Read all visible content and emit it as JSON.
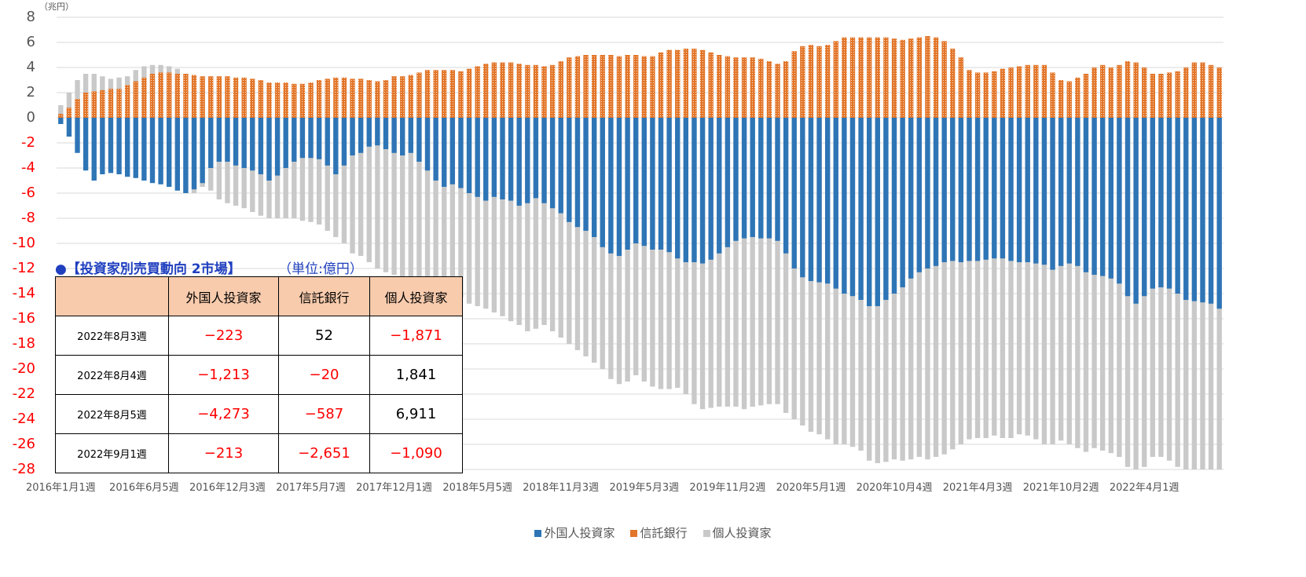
{
  "chart_data": {
    "type": "bar",
    "y_unit": "（兆円）",
    "categories": [
      "2016年1月1週",
      null,
      null,
      null,
      null,
      null,
      null,
      null,
      null,
      null,
      "2016年6月5週",
      null,
      null,
      null,
      null,
      null,
      null,
      null,
      null,
      null,
      "2016年12月3週",
      null,
      null,
      null,
      null,
      null,
      null,
      null,
      null,
      null,
      "2017年5月7週",
      null,
      null,
      null,
      null,
      null,
      null,
      null,
      null,
      null,
      "2017年12月1週",
      null,
      null,
      null,
      null,
      null,
      null,
      null,
      null,
      null,
      "2018年5月5週",
      null,
      null,
      null,
      null,
      null,
      null,
      null,
      null,
      null,
      "2018年11月3週",
      null,
      null,
      null,
      null,
      null,
      null,
      null,
      null,
      null,
      "2019年5月3週",
      null,
      null,
      null,
      null,
      null,
      null,
      null,
      null,
      null,
      "2019年11月2週",
      null,
      null,
      null,
      null,
      null,
      null,
      null,
      null,
      null,
      "2020年5月1週",
      null,
      null,
      null,
      null,
      null,
      null,
      null,
      null,
      null,
      "2020年10月4週",
      null,
      null,
      null,
      null,
      null,
      null,
      null,
      null,
      null,
      "2021年4月3週",
      null,
      null,
      null,
      null,
      null,
      null,
      null,
      null,
      null,
      "2021年10月2週",
      null,
      null,
      null,
      null,
      null,
      null,
      null,
      null,
      null,
      "2022年4月1週",
      null,
      null,
      null,
      null,
      null,
      null,
      null,
      null,
      null
    ],
    "series": [
      {
        "name": "外国人投資家",
        "color": "#2e75b6",
        "values": [
          -0.5,
          -1.5,
          -2.8,
          -4.2,
          -5,
          -4.5,
          -4.4,
          -4.5,
          -4.7,
          -4.8,
          -5,
          -5.2,
          -5.3,
          -5.5,
          -5.8,
          -6,
          -5.7,
          -5.2,
          -4,
          -3.5,
          -3.5,
          -3.8,
          -4,
          -4.2,
          -4.5,
          -5,
          -4.6,
          -4,
          -3.5,
          -3.2,
          -3.2,
          -3.3,
          -3.8,
          -4.5,
          -3.8,
          -3,
          -2.8,
          -2.3,
          -2.2,
          -2.5,
          -2.8,
          -3,
          -2.8,
          -3.5,
          -4.2,
          -5,
          -5.5,
          -5.3,
          -5.6,
          -6,
          -6.3,
          -6.6,
          -6.3,
          -6.5,
          -6.6,
          -7,
          -6.8,
          -6.4,
          -6.8,
          -7.2,
          -7.6,
          -8.3,
          -8.7,
          -9,
          -9.5,
          -10.3,
          -10.8,
          -11,
          -10.5,
          -10,
          -10.2,
          -10.5,
          -10.5,
          -10.7,
          -11.2,
          -11.5,
          -11.5,
          -11.6,
          -11.3,
          -10.8,
          -10.3,
          -9.8,
          -9.6,
          -9.5,
          -9.6,
          -9.6,
          -9.8,
          -10.8,
          -12,
          -12.7,
          -13,
          -13.1,
          -13.2,
          -13.6,
          -14,
          -14.2,
          -14.5,
          -15,
          -15,
          -14.5,
          -14,
          -13.5,
          -12.8,
          -12.3,
          -12,
          -11.8,
          -11.5,
          -11.4,
          -11.5,
          -11.4,
          -11.4,
          -11.3,
          -11.2,
          -11.2,
          -11.4,
          -11.5,
          -11.5,
          -11.6,
          -11.7,
          -12.1,
          -11.8,
          -11.6,
          -11.8,
          -12.3,
          -12.5,
          -12.6,
          -12.8,
          -13.2,
          -14.2,
          -14.8,
          -14.2,
          -13.6,
          -13.5,
          -13.6,
          -14,
          -14.5,
          -14.6,
          -14.7,
          -14.8,
          -15.2
        ]
      },
      {
        "name": "信託銀行",
        "color": "#e2762a",
        "values": [
          0.3,
          0.8,
          1.5,
          2,
          2.1,
          2.2,
          2.3,
          2.3,
          2.6,
          2.9,
          3.2,
          3.5,
          3.6,
          3.6,
          3.5,
          3.5,
          3.4,
          3.3,
          3.3,
          3.3,
          3.3,
          3.2,
          3.2,
          3.1,
          3,
          2.8,
          2.8,
          2.8,
          2.7,
          2.7,
          2.8,
          3,
          3.1,
          3.2,
          3.2,
          3.1,
          3.1,
          3,
          2.9,
          3,
          3.3,
          3.3,
          3.4,
          3.6,
          3.8,
          3.8,
          3.8,
          3.8,
          3.7,
          3.9,
          4.1,
          4.3,
          4.4,
          4.4,
          4.4,
          4.3,
          4.2,
          4.2,
          4.1,
          4.2,
          4.5,
          4.8,
          4.9,
          5,
          5,
          5,
          5,
          4.9,
          5,
          5,
          4.9,
          4.9,
          5.2,
          5.4,
          5.4,
          5.5,
          5.5,
          5.4,
          5.2,
          5,
          4.9,
          4.8,
          4.8,
          4.8,
          4.7,
          4.5,
          4.3,
          4.5,
          5.3,
          5.7,
          5.8,
          5.7,
          5.8,
          6.1,
          6.4,
          6.4,
          6.4,
          6.4,
          6.4,
          6.4,
          6.3,
          6.2,
          6.3,
          6.4,
          6.5,
          6.4,
          6.1,
          5.5,
          4.8,
          3.8,
          3.6,
          3.6,
          3.7,
          3.9,
          4,
          4.1,
          4.2,
          4.2,
          4.2,
          3.6,
          3,
          2.9,
          3.2,
          3.5,
          4,
          4.2,
          4,
          4.2,
          4.5,
          4.4,
          4,
          3.5,
          3.5,
          3.6,
          3.7,
          4,
          4.4,
          4.4,
          4.2,
          4
        ]
      },
      {
        "name": "個人投資家",
        "color": "#c9c9c9",
        "values": [
          1,
          2,
          3,
          3.5,
          3.5,
          3.3,
          3.1,
          3.2,
          3.3,
          3.8,
          4.1,
          4.2,
          4.2,
          4.1,
          3.9,
          -6,
          -6,
          -5.5,
          -5.8,
          -6.5,
          -6.8,
          -7,
          -7.2,
          -7.5,
          -7.8,
          -8,
          -8,
          -8,
          -8,
          -8.2,
          -8.3,
          -8.5,
          -9,
          -9.5,
          -10,
          -10.8,
          -11,
          -11.5,
          -12,
          -12.3,
          -12.5,
          -12.8,
          -12.8,
          -13,
          -13,
          -13.2,
          -13.5,
          -14,
          -14.3,
          -14.8,
          -15,
          -15.2,
          -15.5,
          -15.8,
          -16.2,
          -16.5,
          -17,
          -16.8,
          -16.5,
          -17,
          -17.5,
          -18,
          -18.5,
          -19,
          -19.5,
          -20,
          -20.8,
          -21.2,
          -21,
          -20.5,
          -21,
          -21.4,
          -21.6,
          -21.6,
          -21.5,
          -22,
          -22.8,
          -23.2,
          -23.1,
          -23,
          -23,
          -23,
          -23.2,
          -23,
          -22.9,
          -22.8,
          -22.8,
          -23.5,
          -24,
          -24.5,
          -25,
          -25.2,
          -25.6,
          -26,
          -26,
          -26.2,
          -26.5,
          -27.3,
          -27.5,
          -27.4,
          -27.2,
          -27.3,
          -27.2,
          -27,
          -27.2,
          -27,
          -26.8,
          -26.4,
          -26,
          -25.6,
          -25.5,
          -25.5,
          -25.3,
          -25.5,
          -25.5,
          -25.2,
          -25.3,
          -25.6,
          -26,
          -26,
          -25.7,
          -26,
          -26.3,
          -26.6,
          -26.3,
          -26.5,
          -26.7,
          -27,
          -27.8,
          -28,
          -27.8,
          -27,
          -27,
          -27.3,
          -27.8,
          -28,
          -28,
          -28,
          -28,
          -28
        ]
      }
    ],
    "ylim": [
      -28,
      8
    ],
    "yticks": [
      8,
      6,
      4,
      2,
      0,
      -2,
      -4,
      -6,
      -8,
      -10,
      -12,
      -14,
      -16,
      -18,
      -20,
      -22,
      -24,
      -26,
      -28
    ],
    "grid": true,
    "legend": "bottom"
  },
  "table": {
    "title": "●【投資家別売買動向 2市場】",
    "unit": "（単位:億円）",
    "header": [
      "外国人投資家",
      "信託銀行",
      "個人投資家"
    ],
    "rows": [
      [
        "2022年8月3週",
        "−223",
        "52",
        "−1,871"
      ],
      [
        "2022年8月4週",
        "−1,213",
        "−20",
        "1,841"
      ],
      [
        "2022年8月5週",
        "−4,273",
        "−587",
        "6,911"
      ],
      [
        "2022年9月1週",
        "−213",
        "−2,651",
        "−1,090"
      ]
    ]
  }
}
